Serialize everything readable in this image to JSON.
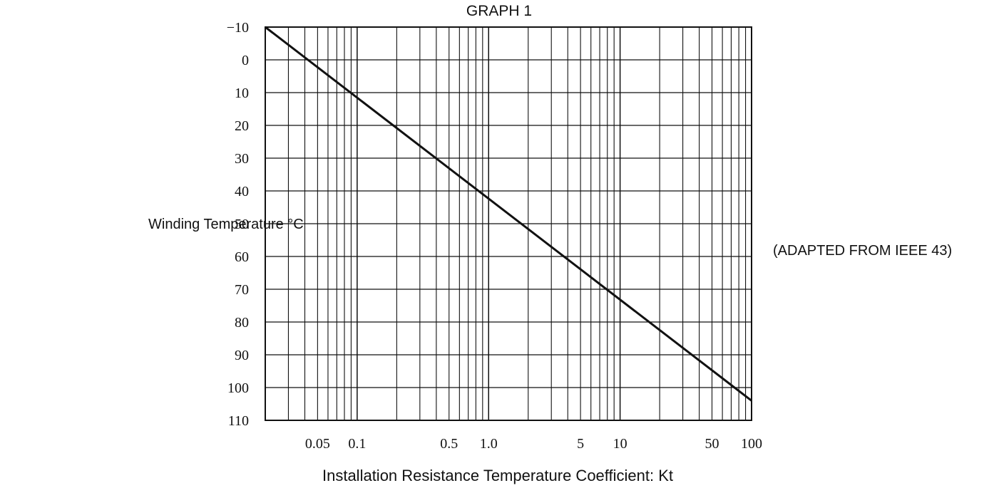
{
  "chart_data": {
    "type": "line",
    "title": "GRAPH 1",
    "ylabel": "Winding Temperature °C",
    "xlabel": "Installation Resistance Temperature Coefficient: Kt",
    "annotation": "(ADAPTED FROM IEEE 43)",
    "x_scale": "log",
    "y_inverted": true,
    "xlim": [
      0.02,
      100
    ],
    "ylim": [
      -10,
      110
    ],
    "grid": true,
    "x_ticks": [
      {
        "value": 0.05,
        "label": "0.05"
      },
      {
        "value": 0.1,
        "label": "0.1"
      },
      {
        "value": 0.5,
        "label": "0.5"
      },
      {
        "value": 1,
        "label": "1.0"
      },
      {
        "value": 5,
        "label": "5"
      },
      {
        "value": 10,
        "label": "10"
      },
      {
        "value": 50,
        "label": "50"
      },
      {
        "value": 100,
        "label": "100"
      }
    ],
    "y_ticks": [
      "-10",
      "0",
      "10",
      "20",
      "30",
      "40",
      "50",
      "60",
      "70",
      "80",
      "90",
      "100",
      "110"
    ],
    "series": [
      {
        "color": "#111111",
        "points": [
          {
            "x": 0.02,
            "y": -10
          },
          {
            "x": 100,
            "y": 104
          }
        ]
      }
    ]
  }
}
